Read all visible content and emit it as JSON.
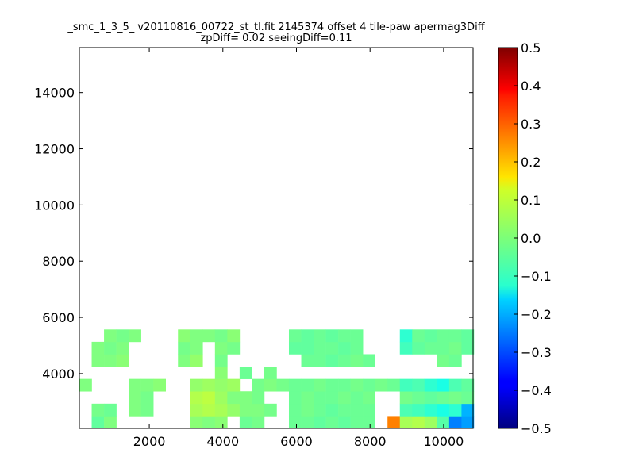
{
  "chart_data": {
    "type": "heatmap",
    "title": "_smc_1_3_5_ v20110816_00722_st_tl.fit 2145374 offset 4 tile-paw apermag3Diff",
    "subtitle": "zpDiff= 0.02 seeingDiff=0.11",
    "xlabel": "",
    "ylabel": "",
    "xlim": [
      100,
      10800
    ],
    "ylim": [
      2050,
      15600
    ],
    "xticks": [
      2000,
      4000,
      6000,
      8000,
      10000
    ],
    "yticks": [
      4000,
      6000,
      8000,
      10000,
      12000,
      14000
    ],
    "x_tick_labels": [
      "2000",
      "4000",
      "6000",
      "8000",
      "10000"
    ],
    "y_tick_labels": [
      "4000",
      "6000",
      "8000",
      "10000",
      "12000",
      "14000"
    ],
    "colorbar": {
      "min": -0.5,
      "max": 0.5,
      "colormap": "jet",
      "ticks": [
        -0.5,
        -0.4,
        -0.3,
        -0.2,
        -0.1,
        0.0,
        0.1,
        0.2,
        0.3,
        0.4,
        0.5
      ],
      "tick_labels": [
        "−0.5",
        "−0.4",
        "−0.3",
        "−0.2",
        "−0.1",
        "0.0",
        "0.1",
        "0.2",
        "0.3",
        "0.4",
        "0.5"
      ]
    },
    "grid": {
      "x0": 100,
      "y0": 2050,
      "dx": 335,
      "dy": 440,
      "rows": [
        "..................",
        "...............",
        ".........................8.",
        "...............",
        "........................",
        "......",
        ".........",
        ".........................",
        "...................",
        "...................",
        "..................",
        ".................",
        "...........",
        "...................",
        "............",
        ".............",
        "........................",
        "...............",
        "....................",
        "................",
        ".................",
        "......................",
        "............................",
        "..............................",
        "..............",
        "........",
        ".........",
        ".........",
        "......",
        "...",
        "...."
      ],
      "empty_cell": ".",
      "value_scale": 0.01,
      "codes": "0-9,a-z",
      "note_value_offset": 0
    },
    "cells": [
      [
        1,
        0,
        -0.03
      ],
      [
        2,
        0,
        0.0
      ],
      [
        1,
        1,
        -0.01
      ],
      [
        2,
        1,
        -0.02
      ],
      [
        9,
        0,
        0.01
      ],
      [
        10,
        0,
        0.0
      ],
      [
        11,
        0,
        0.01
      ],
      [
        13,
        0,
        -0.02
      ],
      [
        14,
        0,
        -0.01
      ],
      [
        17,
        0,
        -0.02
      ],
      [
        18,
        0,
        -0.02
      ],
      [
        19,
        0,
        -0.03
      ],
      [
        20,
        0,
        -0.02
      ],
      [
        21,
        0,
        -0.03
      ],
      [
        22,
        0,
        -0.02
      ],
      [
        23,
        0,
        -0.02
      ],
      [
        25,
        0,
        0.25
      ],
      [
        26,
        0,
        0.04
      ],
      [
        27,
        0,
        0.05
      ],
      [
        28,
        0,
        0.03
      ],
      [
        29,
        0,
        -0.04
      ],
      [
        30,
        0,
        -0.25
      ],
      [
        31,
        0,
        -0.22
      ],
      [
        4,
        1,
        0.0
      ],
      [
        5,
        1,
        -0.01
      ],
      [
        9,
        1,
        0.04
      ],
      [
        10,
        1,
        0.05
      ],
      [
        11,
        1,
        0.04
      ],
      [
        12,
        1,
        0.02
      ],
      [
        13,
        1,
        0.0
      ],
      [
        14,
        1,
        0.0
      ],
      [
        15,
        1,
        -0.01
      ],
      [
        17,
        1,
        -0.02
      ],
      [
        18,
        1,
        -0.01
      ],
      [
        19,
        1,
        -0.02
      ],
      [
        20,
        1,
        -0.03
      ],
      [
        21,
        1,
        -0.02
      ],
      [
        22,
        1,
        -0.02
      ],
      [
        23,
        1,
        -0.02
      ],
      [
        26,
        1,
        -0.05
      ],
      [
        27,
        1,
        -0.06
      ],
      [
        28,
        1,
        -0.08
      ],
      [
        29,
        1,
        -0.1
      ],
      [
        30,
        1,
        -0.08
      ],
      [
        31,
        1,
        -0.2
      ],
      [
        4,
        2,
        0.0
      ],
      [
        5,
        2,
        -0.01
      ],
      [
        9,
        2,
        0.05
      ],
      [
        10,
        2,
        0.06
      ],
      [
        11,
        2,
        0.03
      ],
      [
        12,
        2,
        0.0
      ],
      [
        13,
        2,
        0.0
      ],
      [
        14,
        2,
        -0.01
      ],
      [
        17,
        2,
        -0.02
      ],
      [
        18,
        2,
        -0.01
      ],
      [
        19,
        2,
        -0.02
      ],
      [
        20,
        2,
        -0.02
      ],
      [
        21,
        2,
        -0.01
      ],
      [
        22,
        2,
        -0.02
      ],
      [
        23,
        2,
        -0.01
      ],
      [
        26,
        2,
        -0.01
      ],
      [
        27,
        2,
        -0.02
      ],
      [
        28,
        2,
        -0.03
      ],
      [
        29,
        2,
        -0.02
      ],
      [
        30,
        2,
        -0.01
      ],
      [
        31,
        2,
        -0.02
      ],
      [
        0,
        3,
        0.0
      ],
      [
        4,
        3,
        0.0
      ],
      [
        5,
        3,
        0.0
      ],
      [
        6,
        3,
        0.01
      ],
      [
        9,
        3,
        0.02
      ],
      [
        10,
        3,
        0.03
      ],
      [
        11,
        3,
        0.02
      ],
      [
        12,
        3,
        0.03
      ],
      [
        14,
        3,
        -0.01
      ],
      [
        15,
        3,
        0.0
      ],
      [
        16,
        3,
        -0.01
      ],
      [
        17,
        3,
        -0.02
      ],
      [
        18,
        3,
        -0.02
      ],
      [
        19,
        3,
        -0.01
      ],
      [
        20,
        3,
        -0.02
      ],
      [
        21,
        3,
        -0.02
      ],
      [
        22,
        3,
        -0.01
      ],
      [
        23,
        3,
        -0.02
      ],
      [
        24,
        3,
        -0.01
      ],
      [
        25,
        3,
        -0.02
      ],
      [
        26,
        3,
        -0.06
      ],
      [
        27,
        3,
        -0.05
      ],
      [
        28,
        3,
        -0.08
      ],
      [
        29,
        3,
        -0.1
      ],
      [
        30,
        3,
        -0.05
      ],
      [
        31,
        3,
        -0.03
      ],
      [
        11,
        4,
        0.01
      ],
      [
        13,
        4,
        -0.02
      ],
      [
        15,
        4,
        -0.01
      ],
      [
        1,
        5,
        0.0
      ],
      [
        2,
        5,
        0.0
      ],
      [
        3,
        5,
        0.01
      ],
      [
        8,
        5,
        0.0
      ],
      [
        9,
        5,
        0.02
      ],
      [
        11,
        5,
        -0.01
      ],
      [
        18,
        5,
        -0.02
      ],
      [
        19,
        5,
        -0.02
      ],
      [
        20,
        5,
        -0.03
      ],
      [
        21,
        5,
        -0.02
      ],
      [
        22,
        5,
        -0.01
      ],
      [
        23,
        5,
        -0.02
      ],
      [
        29,
        5,
        -0.01
      ],
      [
        30,
        5,
        -0.02
      ],
      [
        1,
        6,
        0.0
      ],
      [
        2,
        6,
        -0.01
      ],
      [
        3,
        6,
        0.0
      ],
      [
        8,
        6,
        -0.01
      ],
      [
        9,
        6,
        0.0
      ],
      [
        11,
        6,
        0.0
      ],
      [
        12,
        6,
        -0.01
      ],
      [
        17,
        6,
        -0.03
      ],
      [
        18,
        6,
        -0.03
      ],
      [
        19,
        6,
        -0.02
      ],
      [
        20,
        6,
        -0.02
      ],
      [
        21,
        6,
        -0.03
      ],
      [
        22,
        6,
        -0.02
      ],
      [
        26,
        6,
        -0.06
      ],
      [
        27,
        6,
        -0.03
      ],
      [
        28,
        6,
        -0.02
      ],
      [
        29,
        6,
        -0.02
      ],
      [
        30,
        6,
        -0.01
      ],
      [
        31,
        6,
        -0.03
      ],
      [
        2,
        7,
        0.0
      ],
      [
        3,
        7,
        -0.01
      ],
      [
        4,
        7,
        0.0
      ],
      [
        8,
        7,
        0.01
      ],
      [
        9,
        7,
        0.0
      ],
      [
        10,
        7,
        0.0
      ],
      [
        11,
        7,
        -0.01
      ],
      [
        12,
        7,
        0.01
      ],
      [
        17,
        7,
        -0.02
      ],
      [
        18,
        7,
        -0.03
      ],
      [
        19,
        7,
        -0.02
      ],
      [
        20,
        7,
        -0.03
      ],
      [
        21,
        7,
        -0.02
      ],
      [
        22,
        7,
        -0.02
      ],
      [
        26,
        7,
        -0.08
      ],
      [
        27,
        7,
        -0.02
      ],
      [
        28,
        7,
        -0.03
      ],
      [
        29,
        7,
        -0.02
      ],
      [
        30,
        7,
        -0.02
      ],
      [
        31,
        7,
        -0.03
      ]
    ]
  }
}
